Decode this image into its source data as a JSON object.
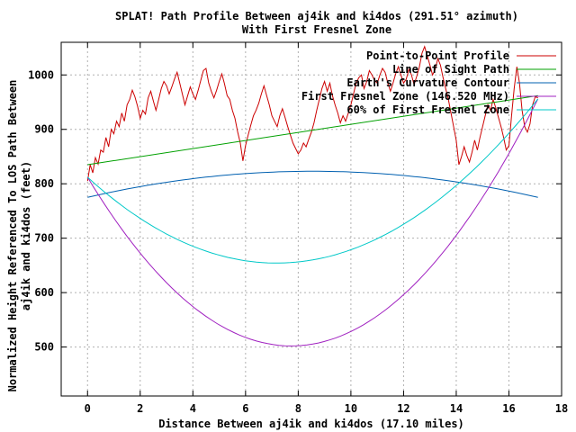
{
  "chart_data": {
    "type": "line",
    "title": "SPLAT! Path Profile Between aj4ik and ki4dos (291.51° azimuth)",
    "subtitle": "With First Fresnel Zone",
    "xlabel": "Distance Between aj4ik and ki4dos (17.10 miles)",
    "ylabel_line1": "Normalized Height Referenced To LOS Path Between",
    "ylabel_line2": "aj4ik and ki4dos (feet)",
    "xlim": [
      -1,
      18
    ],
    "ylim": [
      410,
      1060
    ],
    "x_ticks": [
      0,
      2,
      4,
      6,
      8,
      10,
      12,
      14,
      16,
      18
    ],
    "y_ticks": [
      500,
      600,
      700,
      800,
      900,
      1000
    ],
    "grid": true,
    "legend_position": "top-right",
    "series": [
      {
        "name": "Point-to-Point Profile",
        "color": "#cc0000",
        "points": [
          [
            0,
            805
          ],
          [
            0.1,
            835
          ],
          [
            0.2,
            820
          ],
          [
            0.3,
            848
          ],
          [
            0.4,
            836
          ],
          [
            0.5,
            862
          ],
          [
            0.6,
            858
          ],
          [
            0.7,
            885
          ],
          [
            0.8,
            868
          ],
          [
            0.9,
            900
          ],
          [
            1.0,
            892
          ],
          [
            1.1,
            915
          ],
          [
            1.2,
            905
          ],
          [
            1.3,
            930
          ],
          [
            1.4,
            915
          ],
          [
            1.5,
            945
          ],
          [
            1.6,
            955
          ],
          [
            1.7,
            972
          ],
          [
            1.8,
            960
          ],
          [
            1.9,
            942
          ],
          [
            2.0,
            920
          ],
          [
            2.1,
            935
          ],
          [
            2.2,
            928
          ],
          [
            2.3,
            958
          ],
          [
            2.4,
            970
          ],
          [
            2.5,
            952
          ],
          [
            2.6,
            935
          ],
          [
            2.7,
            955
          ],
          [
            2.8,
            975
          ],
          [
            2.9,
            988
          ],
          [
            3.0,
            980
          ],
          [
            3.1,
            965
          ],
          [
            3.2,
            978
          ],
          [
            3.3,
            992
          ],
          [
            3.4,
            1005
          ],
          [
            3.5,
            985
          ],
          [
            3.6,
            965
          ],
          [
            3.7,
            945
          ],
          [
            3.8,
            962
          ],
          [
            3.9,
            978
          ],
          [
            4.0,
            965
          ],
          [
            4.1,
            955
          ],
          [
            4.2,
            972
          ],
          [
            4.3,
            990
          ],
          [
            4.4,
            1008
          ],
          [
            4.5,
            1012
          ],
          [
            4.6,
            985
          ],
          [
            4.7,
            970
          ],
          [
            4.8,
            958
          ],
          [
            4.9,
            972
          ],
          [
            5.0,
            988
          ],
          [
            5.1,
            1002
          ],
          [
            5.2,
            984
          ],
          [
            5.3,
            962
          ],
          [
            5.4,
            955
          ],
          [
            5.5,
            935
          ],
          [
            5.6,
            920
          ],
          [
            5.7,
            895
          ],
          [
            5.8,
            875
          ],
          [
            5.9,
            842
          ],
          [
            6.0,
            870
          ],
          [
            6.1,
            890
          ],
          [
            6.2,
            908
          ],
          [
            6.3,
            925
          ],
          [
            6.4,
            935
          ],
          [
            6.5,
            948
          ],
          [
            6.6,
            965
          ],
          [
            6.7,
            980
          ],
          [
            6.8,
            962
          ],
          [
            6.9,
            945
          ],
          [
            7.0,
            925
          ],
          [
            7.1,
            915
          ],
          [
            7.2,
            905
          ],
          [
            7.3,
            925
          ],
          [
            7.4,
            938
          ],
          [
            7.5,
            922
          ],
          [
            7.6,
            905
          ],
          [
            7.7,
            890
          ],
          [
            7.8,
            875
          ],
          [
            7.9,
            865
          ],
          [
            8.0,
            855
          ],
          [
            8.1,
            862
          ],
          [
            8.2,
            875
          ],
          [
            8.3,
            868
          ],
          [
            8.4,
            882
          ],
          [
            8.5,
            895
          ],
          [
            8.6,
            912
          ],
          [
            8.7,
            935
          ],
          [
            8.8,
            955
          ],
          [
            8.9,
            975
          ],
          [
            9.0,
            988
          ],
          [
            9.1,
            970
          ],
          [
            9.2,
            985
          ],
          [
            9.3,
            962
          ],
          [
            9.4,
            945
          ],
          [
            9.5,
            930
          ],
          [
            9.6,
            912
          ],
          [
            9.7,
            925
          ],
          [
            9.8,
            915
          ],
          [
            9.9,
            930
          ],
          [
            10.0,
            945
          ],
          [
            10.1,
            965
          ],
          [
            10.2,
            985
          ],
          [
            10.3,
            995
          ],
          [
            10.4,
            1000
          ],
          [
            10.5,
            975
          ],
          [
            10.6,
            988
          ],
          [
            10.7,
            1008
          ],
          [
            10.8,
            1000
          ],
          [
            10.9,
            990
          ],
          [
            11.0,
            985
          ],
          [
            11.1,
            1000
          ],
          [
            11.2,
            1012
          ],
          [
            11.3,
            1005
          ],
          [
            11.4,
            985
          ],
          [
            11.5,
            970
          ],
          [
            11.6,
            985
          ],
          [
            11.7,
            1002
          ],
          [
            11.8,
            1015
          ],
          [
            11.9,
            1000
          ],
          [
            12.0,
            985
          ],
          [
            12.1,
            992
          ],
          [
            12.2,
            1010
          ],
          [
            12.3,
            1000
          ],
          [
            12.4,
            982
          ],
          [
            12.5,
            998
          ],
          [
            12.6,
            1015
          ],
          [
            12.7,
            1040
          ],
          [
            12.8,
            1052
          ],
          [
            12.9,
            1035
          ],
          [
            13.0,
            1018
          ],
          [
            13.1,
            1000
          ],
          [
            13.2,
            1010
          ],
          [
            13.3,
            1030
          ],
          [
            13.4,
            1018
          ],
          [
            13.5,
            995
          ],
          [
            13.6,
            975
          ],
          [
            13.7,
            955
          ],
          [
            13.8,
            930
          ],
          [
            13.9,
            905
          ],
          [
            14.0,
            880
          ],
          [
            14.1,
            835
          ],
          [
            14.2,
            850
          ],
          [
            14.3,
            868
          ],
          [
            14.4,
            852
          ],
          [
            14.5,
            840
          ],
          [
            14.6,
            858
          ],
          [
            14.7,
            880
          ],
          [
            14.8,
            862
          ],
          [
            14.9,
            885
          ],
          [
            15.0,
            905
          ],
          [
            15.1,
            925
          ],
          [
            15.2,
            945
          ],
          [
            15.3,
            935
          ],
          [
            15.4,
            955
          ],
          [
            15.5,
            940
          ],
          [
            15.6,
            922
          ],
          [
            15.7,
            905
          ],
          [
            15.8,
            885
          ],
          [
            15.9,
            862
          ],
          [
            16.0,
            870
          ],
          [
            16.1,
            925
          ],
          [
            16.2,
            975
          ],
          [
            16.3,
            1015
          ],
          [
            16.4,
            985
          ],
          [
            16.5,
            935
          ],
          [
            16.6,
            905
          ],
          [
            16.7,
            895
          ],
          [
            16.8,
            910
          ],
          [
            16.9,
            945
          ],
          [
            17.0,
            960
          ],
          [
            17.1,
            958
          ]
        ]
      },
      {
        "name": "Line of Sight Path",
        "color": "#00a000",
        "from": [
          0,
          835
        ],
        "to": [
          17.1,
          962
        ]
      },
      {
        "name": "Earth's Curvature Contour",
        "color": "#0060b0",
        "endpoints_y": [
          775,
          775
        ],
        "peak": [
          8.55,
          823
        ]
      },
      {
        "name": "First Fresnel Zone (146.520 MHz)",
        "color": "#a020c0",
        "endpoints_y": [
          812,
          956
        ],
        "min": [
          7.3,
          503
        ]
      },
      {
        "name": "60% of First Fresnel Zone",
        "color": "#00c8c8",
        "endpoints_y": [
          812,
          956
        ],
        "min": [
          6.7,
          655
        ]
      }
    ]
  }
}
